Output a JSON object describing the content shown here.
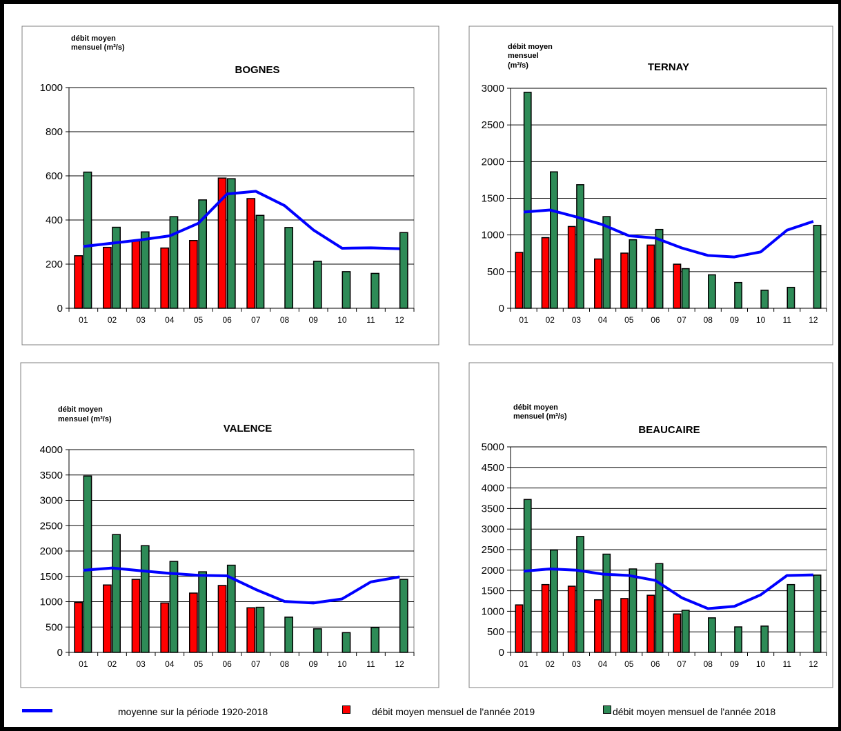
{
  "colors": {
    "series_2019": "#ff0000",
    "series_2018": "#2e8b57",
    "average_line": "#0000ff",
    "grid": "#000000"
  },
  "legend": {
    "average_label": "moyenne sur la période 1920-2018",
    "series_2019_label": "débit moyen mensuel de l'année 2019",
    "series_2018_label": "débit moyen mensuel de l'année 2018"
  },
  "chart_data": [
    {
      "type": "bar",
      "title": "BOGNES",
      "ylabel_lines": [
        "débit moyen",
        "mensuel (m³/s)"
      ],
      "ylim": [
        0,
        1000
      ],
      "yticks": [
        0,
        200,
        400,
        600,
        800,
        1000
      ],
      "grid": true,
      "categories": [
        "01",
        "02",
        "03",
        "04",
        "05",
        "06",
        "07",
        "08",
        "09",
        "10",
        "11",
        "12"
      ],
      "series": [
        {
          "name": "débit moyen mensuel de l'année 2019",
          "kind": "bar",
          "color": "#ff0000",
          "values": [
            238,
            276,
            305,
            273,
            307,
            590,
            497,
            null,
            null,
            null,
            null,
            null
          ]
        },
        {
          "name": "débit moyen mensuel de l'année 2018",
          "kind": "bar",
          "color": "#2e8b57",
          "values": [
            617,
            367,
            346,
            415,
            491,
            587,
            421,
            366,
            213,
            166,
            158,
            343
          ]
        },
        {
          "name": "moyenne sur la période 1920-2018",
          "kind": "line",
          "color": "#0000ff",
          "values": [
            280,
            295,
            310,
            328,
            385,
            518,
            530,
            465,
            355,
            272,
            274,
            270
          ]
        }
      ]
    },
    {
      "type": "bar",
      "title": "TERNAY",
      "ylabel_lines": [
        "débit moyen",
        "mensuel",
        "(m³/s)"
      ],
      "ylim": [
        0,
        3000
      ],
      "yticks": [
        0,
        500,
        1000,
        1500,
        2000,
        2500,
        3000
      ],
      "grid": true,
      "categories": [
        "01",
        "02",
        "03",
        "04",
        "05",
        "06",
        "07",
        "08",
        "09",
        "10",
        "11",
        "12"
      ],
      "series": [
        {
          "name": "débit moyen mensuel de l'année 2019",
          "kind": "bar",
          "color": "#ff0000",
          "values": [
            762,
            963,
            1115,
            672,
            752,
            862,
            601,
            null,
            null,
            null,
            null,
            null
          ]
        },
        {
          "name": "débit moyen mensuel de l'année 2018",
          "kind": "bar",
          "color": "#2e8b57",
          "values": [
            2945,
            1860,
            1685,
            1250,
            934,
            1075,
            540,
            456,
            351,
            246,
            285,
            1130
          ]
        },
        {
          "name": "moyenne sur la période 1920-2018",
          "kind": "line",
          "color": "#0000ff",
          "values": [
            1312,
            1340,
            1245,
            1140,
            988,
            958,
            823,
            720,
            700,
            768,
            1065,
            1185
          ]
        }
      ]
    },
    {
      "type": "bar",
      "title": "VALENCE",
      "ylabel_lines": [
        "débit moyen",
        "mensuel (m³/s)"
      ],
      "ylim": [
        0,
        4000
      ],
      "yticks": [
        0,
        500,
        1000,
        1500,
        2000,
        2500,
        3000,
        3500,
        4000
      ],
      "grid": true,
      "categories": [
        "01",
        "02",
        "03",
        "04",
        "05",
        "06",
        "07",
        "08",
        "09",
        "10",
        "11",
        "12"
      ],
      "series": [
        {
          "name": "débit moyen mensuel de l'année 2019",
          "kind": "bar",
          "color": "#ff0000",
          "values": [
            985,
            1330,
            1440,
            975,
            1170,
            1320,
            880,
            null,
            null,
            null,
            null,
            null
          ]
        },
        {
          "name": "débit moyen mensuel de l'année 2018",
          "kind": "bar",
          "color": "#2e8b57",
          "values": [
            3480,
            2325,
            2105,
            1795,
            1590,
            1720,
            890,
            695,
            465,
            390,
            490,
            1440
          ]
        },
        {
          "name": "moyenne sur la période 1920-2018",
          "kind": "line",
          "color": "#0000ff",
          "values": [
            1620,
            1665,
            1610,
            1560,
            1520,
            1510,
            1240,
            1005,
            975,
            1055,
            1390,
            1490
          ]
        }
      ]
    },
    {
      "type": "bar",
      "title": "BEAUCAIRE",
      "ylabel_lines": [
        "débit moyen",
        "mensuel (m³/s)"
      ],
      "ylim": [
        0,
        5000
      ],
      "yticks": [
        0,
        500,
        1000,
        1500,
        2000,
        2500,
        3000,
        3500,
        4000,
        4500,
        5000
      ],
      "grid": true,
      "categories": [
        "01",
        "02",
        "03",
        "04",
        "05",
        "06",
        "07",
        "08",
        "09",
        "10",
        "11",
        "12"
      ],
      "series": [
        {
          "name": "débit moyen mensuel de l'année 2019",
          "kind": "bar",
          "color": "#ff0000",
          "values": [
            1155,
            1650,
            1610,
            1280,
            1310,
            1390,
            935,
            null,
            null,
            null,
            null,
            null
          ]
        },
        {
          "name": "débit moyen mensuel de l'année 2018",
          "kind": "bar",
          "color": "#2e8b57",
          "values": [
            3720,
            2490,
            2820,
            2390,
            2030,
            2160,
            1025,
            840,
            620,
            640,
            1650,
            1880
          ]
        },
        {
          "name": "moyenne sur la période 1920-2018",
          "kind": "line",
          "color": "#0000ff",
          "values": [
            1975,
            2030,
            2000,
            1905,
            1870,
            1750,
            1330,
            1065,
            1120,
            1400,
            1870,
            1885
          ]
        }
      ]
    }
  ]
}
